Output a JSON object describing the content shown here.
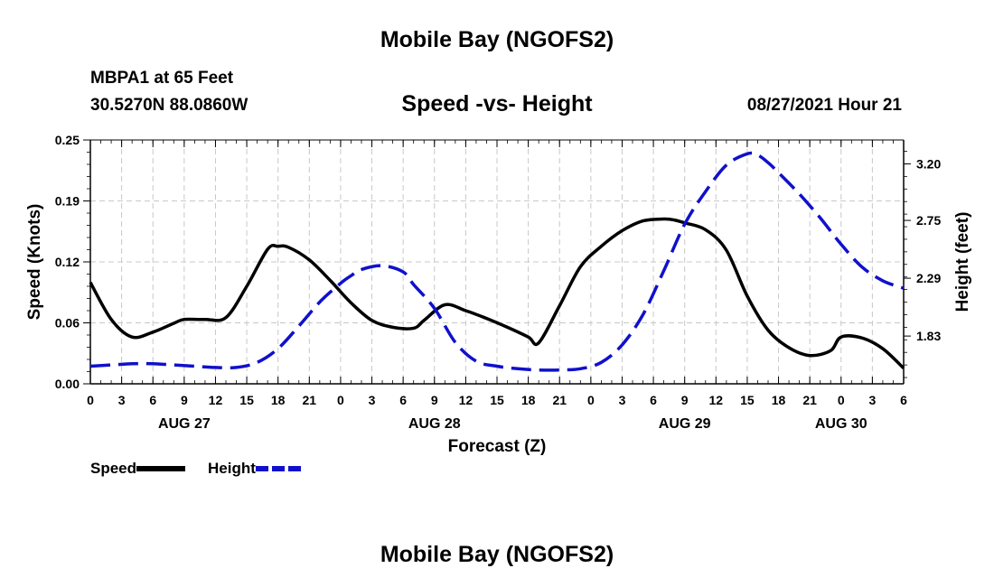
{
  "header": {
    "title": "Mobile Bay (NGOFS2)",
    "station": "MBPA1 at 65 Feet",
    "coords": "30.5270N  88.0860W",
    "subtitle": "Speed -vs- Height",
    "datetime": "08/27/2021 Hour 21"
  },
  "footer": {
    "title": "Mobile Bay (NGOFS2)"
  },
  "legend": {
    "speed_label": "Speed",
    "height_label": "Height"
  },
  "colors": {
    "speed": "#000000",
    "height": "#1010cc",
    "grid": "#c8c8c8"
  },
  "chart_data": {
    "type": "line",
    "xlabel": "Forecast (Z)",
    "ylabel_left": "Speed (Knots)",
    "ylabel_right": "Height (feet)",
    "x_range_hours": [
      0,
      78
    ],
    "x_tick_labels": [
      "0",
      "3",
      "6",
      "9",
      "12",
      "15",
      "18",
      "21",
      "0",
      "3",
      "6",
      "9",
      "12",
      "15",
      "18",
      "21",
      "0",
      "3",
      "6",
      "9",
      "12",
      "15",
      "18",
      "21",
      "0",
      "3",
      "6"
    ],
    "day_labels": [
      {
        "label": "AUG 27",
        "hour": 9
      },
      {
        "label": "AUG 28",
        "hour": 33
      },
      {
        "label": "AUG 29",
        "hour": 57
      },
      {
        "label": "AUG 30",
        "hour": 72
      }
    ],
    "y_left": {
      "range": [
        0,
        0.25
      ],
      "ticks": [
        "0.00",
        "0.06",
        "0.12",
        "0.19",
        "0.25"
      ]
    },
    "y_right": {
      "range": [
        1.45,
        3.39
      ],
      "ticks": [
        "1.83",
        "2.29",
        "2.75",
        "3.20"
      ]
    },
    "grid": true,
    "series": [
      {
        "name": "Speed",
        "axis": "left",
        "style": "solid",
        "x": [
          0,
          2,
          4,
          6,
          8,
          9,
          11,
          13,
          15,
          17,
          18,
          19,
          21,
          23,
          25,
          27,
          29,
          31,
          32,
          34,
          36,
          38,
          40,
          42,
          43,
          45,
          47,
          49,
          51,
          53,
          55,
          56,
          57,
          59,
          61,
          63,
          65,
          67,
          69,
          71,
          72,
          74,
          76,
          78
        ],
        "y": [
          0.104,
          0.066,
          0.048,
          0.053,
          0.062,
          0.066,
          0.066,
          0.068,
          0.1,
          0.138,
          0.141,
          0.14,
          0.127,
          0.106,
          0.083,
          0.065,
          0.058,
          0.057,
          0.065,
          0.081,
          0.075,
          0.067,
          0.058,
          0.048,
          0.042,
          0.08,
          0.12,
          0.141,
          0.157,
          0.167,
          0.169,
          0.168,
          0.165,
          0.158,
          0.137,
          0.09,
          0.055,
          0.037,
          0.029,
          0.034,
          0.048,
          0.047,
          0.036,
          0.016
        ]
      },
      {
        "name": "Height",
        "axis": "right",
        "style": "dashed",
        "x": [
          0,
          2,
          4,
          6,
          8,
          10,
          12,
          14,
          16,
          18,
          20,
          22,
          24,
          25,
          26,
          28,
          30,
          31,
          33,
          35,
          37,
          39,
          41,
          43,
          45,
          47,
          49,
          51,
          53,
          55,
          57,
          59,
          61,
          63,
          64,
          65,
          66,
          68,
          70,
          72,
          74,
          76,
          78
        ],
        "y": [
          1.59,
          1.6,
          1.61,
          1.61,
          1.6,
          1.59,
          1.58,
          1.58,
          1.62,
          1.73,
          1.91,
          2.1,
          2.25,
          2.31,
          2.36,
          2.39,
          2.34,
          2.24,
          2.05,
          1.78,
          1.63,
          1.59,
          1.57,
          1.56,
          1.56,
          1.57,
          1.62,
          1.76,
          2.0,
          2.35,
          2.72,
          2.98,
          3.19,
          3.28,
          3.27,
          3.21,
          3.13,
          2.96,
          2.77,
          2.56,
          2.38,
          2.27,
          2.21
        ]
      }
    ]
  }
}
